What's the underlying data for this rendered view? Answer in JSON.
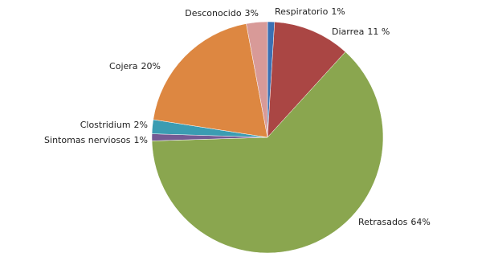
{
  "chart_data": {
    "type": "pie",
    "categories": [
      "Respiratorio",
      "Diarrea",
      "Retrasados",
      "Sintomas nerviosos",
      "Clostridium",
      "Cojera",
      "Desconocido"
    ],
    "values": [
      1,
      11,
      64,
      1,
      2,
      20,
      3
    ],
    "value_labels": [
      "1%",
      "11 %",
      "64%",
      "1%",
      "2%",
      "20%",
      "3%"
    ],
    "colors": [
      "#3b70b3",
      "#aa4644",
      "#8aa64f",
      "#745a94",
      "#3b9cb2",
      "#dd8741",
      "#d89a98"
    ]
  }
}
